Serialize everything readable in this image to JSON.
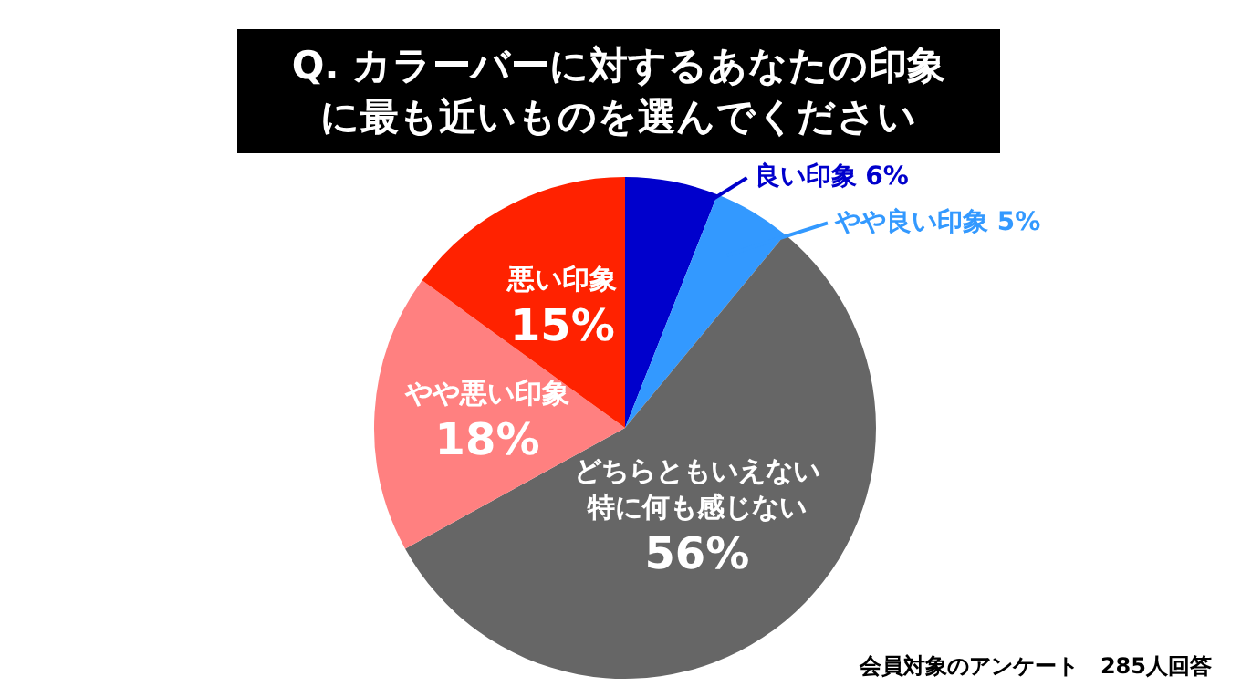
{
  "chart_data": {
    "type": "pie",
    "title": "Q. カラーバーに対するあなたの印象に最も近いものを選んでください",
    "categories": [
      "良い印象",
      "やや良い印象",
      "どちらともいえない特に何も感じない",
      "やや悪い印象",
      "悪い印象"
    ],
    "values": [
      6,
      5,
      56,
      18,
      15
    ],
    "colors": [
      "#0000cc",
      "#3399ff",
      "#666666",
      "#ff8080",
      "#ff2200"
    ],
    "value_labels": [
      "6%",
      "5%",
      "56%",
      "18%",
      "15%"
    ],
    "annotations": [
      "会員対象のアンケート　285人回答"
    ],
    "legend": false
  }
}
